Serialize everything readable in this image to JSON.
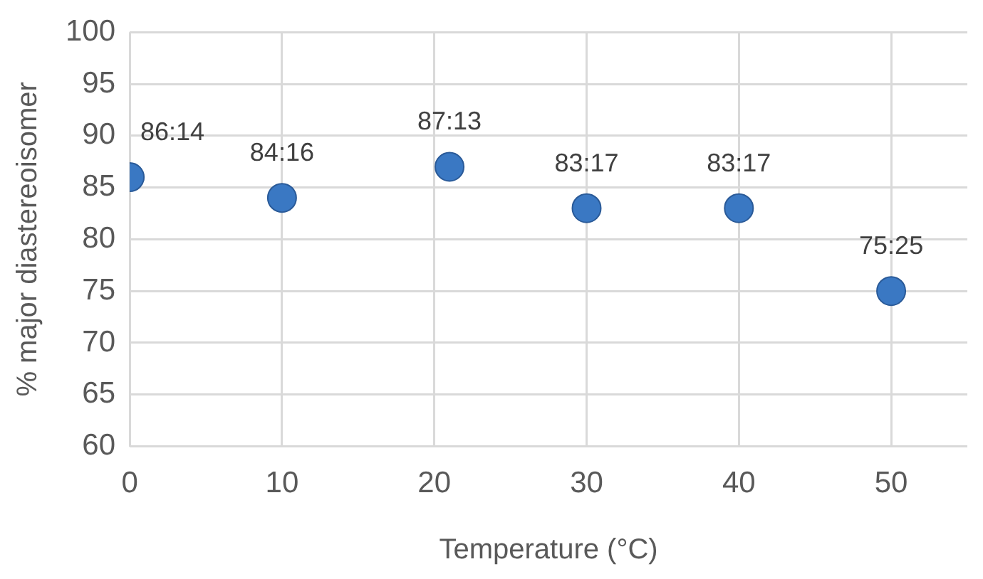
{
  "chart_data": {
    "type": "scatter",
    "xlabel": "Temperature (°C)",
    "ylabel": "% major diastereoisomer",
    "x": [
      0,
      10,
      21,
      30,
      40,
      50
    ],
    "series": [
      {
        "color": "#3a78c3",
        "values": [
          86,
          84,
          87,
          83,
          83,
          75
        ]
      }
    ],
    "annotations": [
      {
        "text": "86:14",
        "x": 0,
        "y": 86
      },
      {
        "text": "84:16",
        "x": 10,
        "y": 84
      },
      {
        "text": "87:13",
        "x": 21,
        "y": 87
      },
      {
        "text": "83:17",
        "x": 30,
        "y": 83
      },
      {
        "text": "83:17",
        "x": 40,
        "y": 83
      },
      {
        "text": "75:25",
        "x": 50,
        "y": 75
      }
    ],
    "xlim": [
      0,
      55
    ],
    "xticks": [
      0,
      10,
      20,
      30,
      40,
      50
    ],
    "ylim": [
      60,
      100
    ],
    "yticks": [
      60,
      65,
      70,
      75,
      80,
      85,
      90,
      95,
      100
    ],
    "grid": true,
    "legend": false,
    "marker": "circle"
  }
}
